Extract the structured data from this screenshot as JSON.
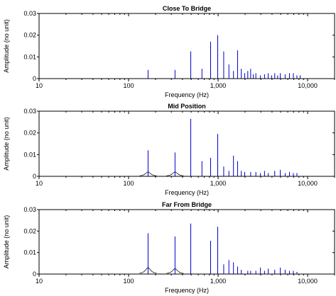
{
  "chart_data": [
    {
      "type": "line",
      "title": "Close To Bridge",
      "xlabel": "Frequency (Hz)",
      "ylabel": "Amplitude (no unit)",
      "xscale": "log",
      "xlim": [
        10,
        20000
      ],
      "ylim": [
        0,
        0.03
      ],
      "xticks": [
        10,
        100,
        1000,
        10000
      ],
      "xtick_labels": [
        "10",
        "100",
        "1,000",
        "10,000"
      ],
      "yticks": [
        0,
        0.01,
        0.02,
        0.03
      ],
      "ytick_labels": [
        "0",
        "0.01",
        "0.02",
        "0.03"
      ],
      "grid": false,
      "color": "#0000cc",
      "peaks": [
        {
          "x": 165,
          "y": 0.004
        },
        {
          "x": 330,
          "y": 0.004
        },
        {
          "x": 495,
          "y": 0.0125
        },
        {
          "x": 660,
          "y": 0.0045
        },
        {
          "x": 825,
          "y": 0.017
        },
        {
          "x": 990,
          "y": 0.02
        },
        {
          "x": 1155,
          "y": 0.0125
        },
        {
          "x": 1320,
          "y": 0.0065
        },
        {
          "x": 1485,
          "y": 0.0035
        },
        {
          "x": 1650,
          "y": 0.013
        },
        {
          "x": 1815,
          "y": 0.0045
        },
        {
          "x": 1980,
          "y": 0.0025
        },
        {
          "x": 2145,
          "y": 0.0035
        },
        {
          "x": 2310,
          "y": 0.0045
        },
        {
          "x": 2475,
          "y": 0.002
        },
        {
          "x": 2640,
          "y": 0.0025
        },
        {
          "x": 2970,
          "y": 0.0015
        },
        {
          "x": 3300,
          "y": 0.002
        },
        {
          "x": 3630,
          "y": 0.0025
        },
        {
          "x": 3960,
          "y": 0.0015
        },
        {
          "x": 4290,
          "y": 0.0025
        },
        {
          "x": 4620,
          "y": 0.0015
        },
        {
          "x": 4950,
          "y": 0.0025
        },
        {
          "x": 5610,
          "y": 0.002
        },
        {
          "x": 6270,
          "y": 0.0025
        },
        {
          "x": 6930,
          "y": 0.0025
        },
        {
          "x": 7590,
          "y": 0.0015
        },
        {
          "x": 8250,
          "y": 0.0015
        }
      ],
      "broad_peaks": []
    },
    {
      "type": "line",
      "title": "Mid Position",
      "xlabel": "Frequency (Hz)",
      "ylabel": "Amplitude (no unit)",
      "xscale": "log",
      "xlim": [
        10,
        20000
      ],
      "ylim": [
        0,
        0.03
      ],
      "xticks": [
        10,
        100,
        1000,
        10000
      ],
      "xtick_labels": [
        "10",
        "100",
        "1,000",
        "10,000"
      ],
      "yticks": [
        0,
        0.01,
        0.02,
        0.03
      ],
      "ytick_labels": [
        "0",
        "0.01",
        "0.02",
        "0.03"
      ],
      "grid": false,
      "color": "#0000cc",
      "peaks": [
        {
          "x": 165,
          "y": 0.012
        },
        {
          "x": 330,
          "y": 0.011
        },
        {
          "x": 495,
          "y": 0.0265
        },
        {
          "x": 660,
          "y": 0.007
        },
        {
          "x": 825,
          "y": 0.0085
        },
        {
          "x": 990,
          "y": 0.0195
        },
        {
          "x": 1155,
          "y": 0.0045
        },
        {
          "x": 1320,
          "y": 0.0025
        },
        {
          "x": 1485,
          "y": 0.0095
        },
        {
          "x": 1650,
          "y": 0.007
        },
        {
          "x": 1815,
          "y": 0.0025
        },
        {
          "x": 1980,
          "y": 0.002
        },
        {
          "x": 2310,
          "y": 0.002
        },
        {
          "x": 2640,
          "y": 0.002
        },
        {
          "x": 2970,
          "y": 0.0015
        },
        {
          "x": 3300,
          "y": 0.0025
        },
        {
          "x": 3630,
          "y": 0.0015
        },
        {
          "x": 4290,
          "y": 0.0025
        },
        {
          "x": 4950,
          "y": 0.003
        },
        {
          "x": 5610,
          "y": 0.0015
        },
        {
          "x": 6270,
          "y": 0.002
        },
        {
          "x": 6930,
          "y": 0.0015
        },
        {
          "x": 7590,
          "y": 0.0015
        }
      ],
      "broad_peaks": [
        {
          "x": 165,
          "y": 0.002
        },
        {
          "x": 330,
          "y": 0.002
        }
      ]
    },
    {
      "type": "line",
      "title": "Far From Bridge",
      "xlabel": "Frequency (Hz)",
      "ylabel": "Amplitude (no unit)",
      "xscale": "log",
      "xlim": [
        10,
        20000
      ],
      "ylim": [
        0,
        0.03
      ],
      "xticks": [
        10,
        100,
        1000,
        10000
      ],
      "xtick_labels": [
        "10",
        "100",
        "1,000",
        "10,000"
      ],
      "yticks": [
        0,
        0.01,
        0.02,
        0.03
      ],
      "ytick_labels": [
        "0",
        "0.01",
        "0.02",
        "0.03"
      ],
      "grid": false,
      "color": "#0000cc",
      "peaks": [
        {
          "x": 165,
          "y": 0.019
        },
        {
          "x": 330,
          "y": 0.0175
        },
        {
          "x": 495,
          "y": 0.0235
        },
        {
          "x": 825,
          "y": 0.0155
        },
        {
          "x": 990,
          "y": 0.022
        },
        {
          "x": 1155,
          "y": 0.0045
        },
        {
          "x": 1320,
          "y": 0.0065
        },
        {
          "x": 1485,
          "y": 0.0055
        },
        {
          "x": 1650,
          "y": 0.0035
        },
        {
          "x": 1815,
          "y": 0.002
        },
        {
          "x": 2145,
          "y": 0.0015
        },
        {
          "x": 2310,
          "y": 0.0015
        },
        {
          "x": 2640,
          "y": 0.0015
        },
        {
          "x": 2970,
          "y": 0.003
        },
        {
          "x": 3300,
          "y": 0.0015
        },
        {
          "x": 3630,
          "y": 0.0025
        },
        {
          "x": 4290,
          "y": 0.002
        },
        {
          "x": 4950,
          "y": 0.003
        },
        {
          "x": 5610,
          "y": 0.002
        },
        {
          "x": 6270,
          "y": 0.0015
        },
        {
          "x": 6930,
          "y": 0.0015
        },
        {
          "x": 7590,
          "y": 0.001
        }
      ],
      "broad_peaks": [
        {
          "x": 165,
          "y": 0.003
        },
        {
          "x": 330,
          "y": 0.0025
        }
      ]
    }
  ]
}
